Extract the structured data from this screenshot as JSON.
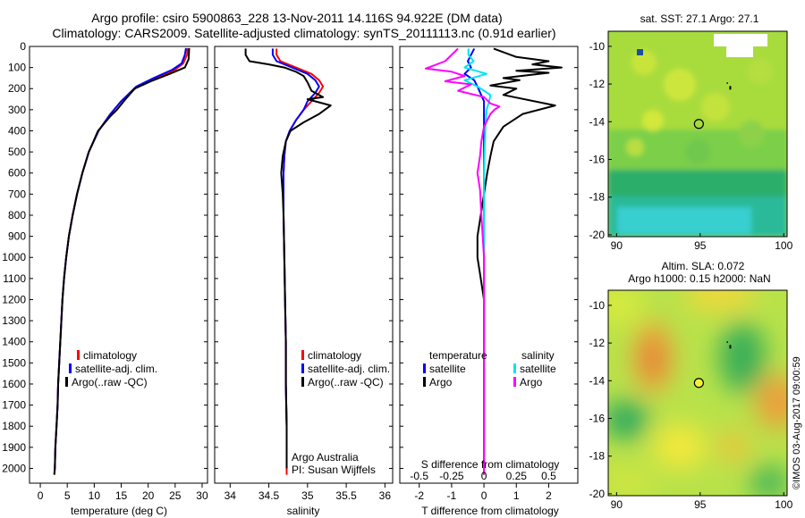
{
  "title": {
    "line1": "Argo profile: csiro 5900863_228 13-Nov-2011 14.116S 94.922E (DM data)",
    "line2": "Climatology: CARS2009. Satellite-adjusted climatology: synTS_20111113.nc (0.91d earlier)"
  },
  "side_text": "©IMOS 03-Aug-2017 09:00:59",
  "colors": {
    "clim": "#ff0000",
    "sat": "#0000ff",
    "argo": "#000000",
    "sal_sat": "#00e5ee",
    "sal_argo": "#ff00ff"
  },
  "chart_data": [
    {
      "type": "line",
      "id": "temperature",
      "xlabel": "temperature (deg C)",
      "xlim": [
        -2,
        31
      ],
      "xticks": [
        0,
        5,
        10,
        15,
        20,
        25,
        30
      ],
      "ylim": [
        0,
        2070
      ],
      "yticks": [
        0,
        100,
        200,
        300,
        400,
        500,
        600,
        700,
        800,
        900,
        1000,
        1100,
        1200,
        1300,
        1400,
        1500,
        1600,
        1700,
        1800,
        1900,
        2000
      ],
      "legend": [
        "climatology",
        "satellite-adj. clim.",
        "Argo(..raw -QC)"
      ],
      "series": [
        {
          "name": "climatology",
          "color": "#ff0000",
          "points": [
            [
              27.3,
              8
            ],
            [
              27.2,
              40
            ],
            [
              26.5,
              80
            ],
            [
              25.0,
              110
            ],
            [
              21.5,
              150
            ],
            [
              18.0,
              190
            ],
            [
              15.0,
              260
            ],
            [
              13.0,
              320
            ],
            [
              10.8,
              400
            ],
            [
              9.0,
              500
            ],
            [
              7.8,
              600
            ],
            [
              6.8,
              700
            ],
            [
              6.0,
              800
            ],
            [
              5.3,
              900
            ],
            [
              4.8,
              1000
            ],
            [
              4.4,
              1100
            ],
            [
              4.1,
              1200
            ],
            [
              3.9,
              1300
            ],
            [
              3.7,
              1400
            ],
            [
              3.5,
              1500
            ],
            [
              3.3,
              1600
            ],
            [
              3.2,
              1700
            ],
            [
              3.0,
              1800
            ],
            [
              2.8,
              1900
            ],
            [
              2.7,
              2000
            ],
            [
              2.6,
              2030
            ]
          ]
        },
        {
          "name": "satellite-adj. clim.",
          "color": "#0000ff",
          "points": [
            [
              27.0,
              8
            ],
            [
              26.8,
              40
            ],
            [
              26.2,
              80
            ],
            [
              24.5,
              110
            ],
            [
              21.0,
              150
            ],
            [
              17.8,
              190
            ],
            [
              15.0,
              260
            ],
            [
              13.0,
              320
            ],
            [
              10.8,
              400
            ],
            [
              9.0,
              500
            ],
            [
              7.8,
              600
            ],
            [
              6.8,
              700
            ],
            [
              6.0,
              800
            ],
            [
              5.3,
              900
            ],
            [
              4.8,
              1000
            ],
            [
              4.4,
              1100
            ],
            [
              4.1,
              1200
            ],
            [
              3.9,
              1300
            ],
            [
              3.7,
              1400
            ],
            [
              3.5,
              1500
            ],
            [
              3.3,
              1600
            ],
            [
              3.2,
              1700
            ],
            [
              3.0,
              1800
            ],
            [
              2.8,
              1900
            ],
            [
              2.7,
              2000
            ]
          ]
        },
        {
          "name": "Argo",
          "color": "#000000",
          "points": [
            [
              27.6,
              8
            ],
            [
              27.5,
              60
            ],
            [
              26.8,
              100
            ],
            [
              24.0,
              130
            ],
            [
              20.5,
              165
            ],
            [
              17.5,
              200
            ],
            [
              15.8,
              250
            ],
            [
              14.2,
              300
            ],
            [
              13.0,
              330
            ],
            [
              10.7,
              400
            ],
            [
              9.0,
              500
            ],
            [
              7.8,
              600
            ],
            [
              6.8,
              700
            ],
            [
              6.0,
              800
            ],
            [
              5.3,
              900
            ],
            [
              4.8,
              1000
            ],
            [
              4.4,
              1100
            ],
            [
              4.1,
              1200
            ],
            [
              3.9,
              1300
            ],
            [
              3.7,
              1400
            ],
            [
              3.5,
              1500
            ],
            [
              3.3,
              1600
            ],
            [
              3.2,
              1700
            ],
            [
              3.0,
              1800
            ],
            [
              2.8,
              1900
            ],
            [
              2.7,
              2000
            ],
            [
              2.6,
              2030
            ]
          ]
        }
      ]
    },
    {
      "type": "line",
      "id": "salinity",
      "xlabel": "salinity",
      "xlim": [
        33.8,
        36.1
      ],
      "xticks": [
        34,
        34.5,
        35,
        35.5,
        36
      ],
      "ylim": [
        0,
        2070
      ],
      "legend": [
        "climatology",
        "satellite-adj. clim.",
        "Argo(..raw -QC)"
      ],
      "annotation": [
        "Argo Australia",
        "PI: Susan Wijffels"
      ],
      "series": [
        {
          "name": "climatology",
          "color": "#ff0000",
          "points": [
            [
              34.6,
              10
            ],
            [
              34.6,
              40
            ],
            [
              34.65,
              70
            ],
            [
              34.85,
              100
            ],
            [
              35.05,
              130
            ],
            [
              35.15,
              160
            ],
            [
              35.2,
              190
            ],
            [
              35.15,
              220
            ],
            [
              35.05,
              260
            ],
            [
              34.95,
              300
            ],
            [
              34.85,
              350
            ],
            [
              34.77,
              400
            ],
            [
              34.72,
              450
            ],
            [
              34.7,
              520
            ],
            [
              34.69,
              600
            ],
            [
              34.69,
              800
            ],
            [
              34.7,
              1000
            ],
            [
              34.71,
              1200
            ],
            [
              34.72,
              1400
            ],
            [
              34.72,
              1600
            ],
            [
              34.73,
              1800
            ],
            [
              34.73,
              2000
            ],
            [
              34.73,
              2030
            ]
          ]
        },
        {
          "name": "satellite-adj. clim.",
          "color": "#0000ff",
          "points": [
            [
              34.55,
              10
            ],
            [
              34.55,
              40
            ],
            [
              34.6,
              70
            ],
            [
              34.8,
              100
            ],
            [
              35.0,
              130
            ],
            [
              35.1,
              160
            ],
            [
              35.15,
              190
            ],
            [
              35.1,
              220
            ],
            [
              35.0,
              260
            ],
            [
              34.95,
              300
            ],
            [
              34.85,
              350
            ],
            [
              34.77,
              400
            ],
            [
              34.72,
              450
            ],
            [
              34.7,
              520
            ],
            [
              34.69,
              600
            ],
            [
              34.69,
              800
            ],
            [
              34.7,
              1000
            ],
            [
              34.71,
              1200
            ],
            [
              34.72,
              1400
            ],
            [
              34.72,
              1600
            ],
            [
              34.73,
              1800
            ],
            [
              34.73,
              2000
            ]
          ]
        },
        {
          "name": "Argo",
          "color": "#000000",
          "points": [
            [
              34.2,
              10
            ],
            [
              34.2,
              40
            ],
            [
              34.25,
              70
            ],
            [
              34.5,
              85
            ],
            [
              34.7,
              100
            ],
            [
              34.85,
              120
            ],
            [
              34.95,
              140
            ],
            [
              35.0,
              170
            ],
            [
              35.05,
              210
            ],
            [
              35.2,
              240
            ],
            [
              35.0,
              250
            ],
            [
              35.3,
              280
            ],
            [
              35.15,
              320
            ],
            [
              34.95,
              360
            ],
            [
              34.78,
              400
            ],
            [
              34.72,
              450
            ],
            [
              34.68,
              520
            ],
            [
              34.66,
              600
            ],
            [
              34.68,
              700
            ],
            [
              34.69,
              800
            ],
            [
              34.7,
              1000
            ],
            [
              34.71,
              1200
            ],
            [
              34.72,
              1400
            ],
            [
              34.72,
              1600
            ],
            [
              34.73,
              1800
            ],
            [
              34.73,
              2000
            ]
          ]
        }
      ]
    },
    {
      "type": "line",
      "id": "differences",
      "xlabel": "T difference from climatology",
      "xlabel_top": "S difference from climatology",
      "xlim": [
        -2.6,
        2.9
      ],
      "xticks": [
        -2,
        -1,
        0,
        1,
        2
      ],
      "xticks_top": [
        -0.5,
        -0.25,
        0,
        0.25,
        0.5
      ],
      "ylim": [
        0,
        2070
      ],
      "legend_titles": [
        "temperature",
        "salinity"
      ],
      "legend_left": [
        "satellite",
        "Argo"
      ],
      "legend_right": [
        "satellite",
        "Argo"
      ],
      "series": [
        {
          "name": "T satellite",
          "color": "#0000ff",
          "points": [
            [
              -0.3,
              10
            ],
            [
              -0.4,
              40
            ],
            [
              -0.5,
              70
            ],
            [
              -0.4,
              100
            ],
            [
              -0.6,
              130
            ],
            [
              -0.3,
              160
            ],
            [
              -0.2,
              190
            ],
            [
              0.0,
              260
            ],
            [
              0.0,
              400
            ],
            [
              0.0,
              600
            ],
            [
              0.0,
              1000
            ],
            [
              0.0,
              1500
            ],
            [
              0.0,
              2000
            ]
          ]
        },
        {
          "name": "T Argo",
          "color": "#000000",
          "points": [
            [
              0.3,
              10
            ],
            [
              1.0,
              50
            ],
            [
              2.0,
              70
            ],
            [
              1.5,
              85
            ],
            [
              2.4,
              100
            ],
            [
              1.0,
              115
            ],
            [
              2.0,
              125
            ],
            [
              0.6,
              150
            ],
            [
              1.1,
              160
            ],
            [
              0.2,
              185
            ],
            [
              1.0,
              200
            ],
            [
              0.6,
              230
            ],
            [
              2.2,
              280
            ],
            [
              1.2,
              320
            ],
            [
              0.6,
              380
            ],
            [
              0.3,
              450
            ],
            [
              0.2,
              520
            ],
            [
              0.1,
              600
            ],
            [
              0.0,
              700
            ],
            [
              -0.1,
              800
            ],
            [
              -0.2,
              900
            ],
            [
              -0.2,
              1000
            ],
            [
              -0.1,
              1100
            ],
            [
              0.0,
              1200
            ],
            [
              0.0,
              1400
            ],
            [
              0.0,
              1600
            ],
            [
              0.0,
              1800
            ],
            [
              0.0,
              2030
            ]
          ]
        },
        {
          "name": "S satellite",
          "color": "#00e5ee",
          "points": [
            [
              -0.12,
              10
            ],
            [
              -0.12,
              40
            ],
            [
              -0.08,
              70
            ],
            [
              -0.15,
              100
            ],
            [
              0.02,
              130
            ],
            [
              -0.15,
              160
            ],
            [
              -0.05,
              190
            ],
            [
              0.05,
              230
            ],
            [
              0.04,
              260
            ],
            [
              0.02,
              300
            ],
            [
              0.01,
              400
            ],
            [
              0.0,
              600
            ],
            [
              0.0,
              1000
            ],
            [
              0.0,
              1500
            ],
            [
              0.0,
              2000
            ]
          ]
        },
        {
          "name": "S Argo",
          "color": "#ff00ff",
          "points": [
            [
              -0.2,
              10
            ],
            [
              -0.3,
              70
            ],
            [
              -0.45,
              105
            ],
            [
              -0.25,
              120
            ],
            [
              -0.15,
              140
            ],
            [
              -0.3,
              165
            ],
            [
              -0.1,
              180
            ],
            [
              -0.2,
              210
            ],
            [
              0.0,
              240
            ],
            [
              0.05,
              270
            ],
            [
              0.12,
              285
            ],
            [
              0.08,
              300
            ],
            [
              0.05,
              320
            ],
            [
              0.0,
              380
            ],
            [
              -0.02,
              450
            ],
            [
              -0.03,
              520
            ],
            [
              -0.05,
              600
            ],
            [
              -0.03,
              680
            ],
            [
              -0.02,
              800
            ],
            [
              0.0,
              1000
            ],
            [
              0.0,
              1200
            ],
            [
              0.0,
              1400
            ],
            [
              0.0,
              1600
            ],
            [
              0.0,
              1800
            ],
            [
              0.0,
              2030
            ]
          ]
        }
      ]
    },
    {
      "type": "heatmap",
      "id": "sst_map",
      "title": "sat. SST: 27.1  Argo: 27.1",
      "xlim": [
        89.5,
        100.2
      ],
      "xticks": [
        90,
        95,
        100
      ],
      "ylim": [
        -20.1,
        -9.2
      ],
      "yticks": [
        -10,
        -12,
        -14,
        -16,
        -18,
        -20
      ],
      "argo_position": [
        94.922,
        -14.116
      ],
      "trajectory": [
        96.8,
        -12.2
      ]
    },
    {
      "type": "heatmap",
      "id": "sla_map",
      "title": "Altim. SLA: 0.072",
      "subtitle": "Argo h1000: 0.15 h2000: NaN",
      "xlim": [
        89.5,
        100.2
      ],
      "xticks": [
        90,
        95,
        100
      ],
      "ylim": [
        -20.1,
        -9.2
      ],
      "yticks": [
        -10,
        -12,
        -14,
        -16,
        -18,
        -20
      ],
      "argo_position": [
        94.922,
        -14.116
      ],
      "trajectory": [
        96.8,
        -12.2
      ]
    }
  ]
}
